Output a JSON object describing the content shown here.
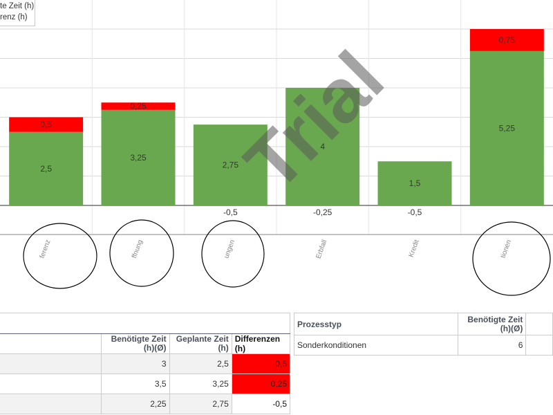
{
  "chart_data": {
    "type": "bar",
    "stacked": true,
    "categories": [
      "ferenz",
      "ffnung",
      "ungen",
      "Erbfall",
      "Kredit",
      "tionen"
    ],
    "series": [
      {
        "name": "te Zeit (h)",
        "values": [
          2.5,
          3.25,
          2.75,
          4,
          1.5,
          5.25
        ],
        "color": "#6aa84f"
      },
      {
        "name": "renz (h)",
        "values": [
          0.5,
          0.25,
          -0.5,
          -0.25,
          -0.5,
          0.75
        ],
        "color": "#ff0000"
      }
    ],
    "value_labels": {
      "green": [
        "2,5",
        "3,25",
        "2,75",
        "4",
        "1,5",
        "5,25"
      ],
      "diff": [
        "0,5",
        "0,25",
        "-0,5",
        "-0,25",
        "-0,5",
        "0,75"
      ]
    },
    "ylim": [
      -1,
      6
    ],
    "grid": true,
    "legend_position": "top-left"
  },
  "watermark": "Trial",
  "table_left": {
    "headers": [
      "",
      "Benötigte Zeit (h)(Ø)",
      "Geplante Zeit (h)",
      "Differenzen (h)"
    ],
    "rows": [
      [
        "",
        "3",
        "2,5",
        "0,5"
      ],
      [
        "",
        "3,5",
        "3,25",
        "0,25"
      ],
      [
        "",
        "2,25",
        "2,75",
        "-0,5"
      ]
    ]
  },
  "table_right": {
    "headers": [
      "Prozesstyp",
      "Benötigte Zeit (h)(Ø)"
    ],
    "rows": [
      [
        "Sonderkonditionen",
        "6"
      ]
    ]
  }
}
